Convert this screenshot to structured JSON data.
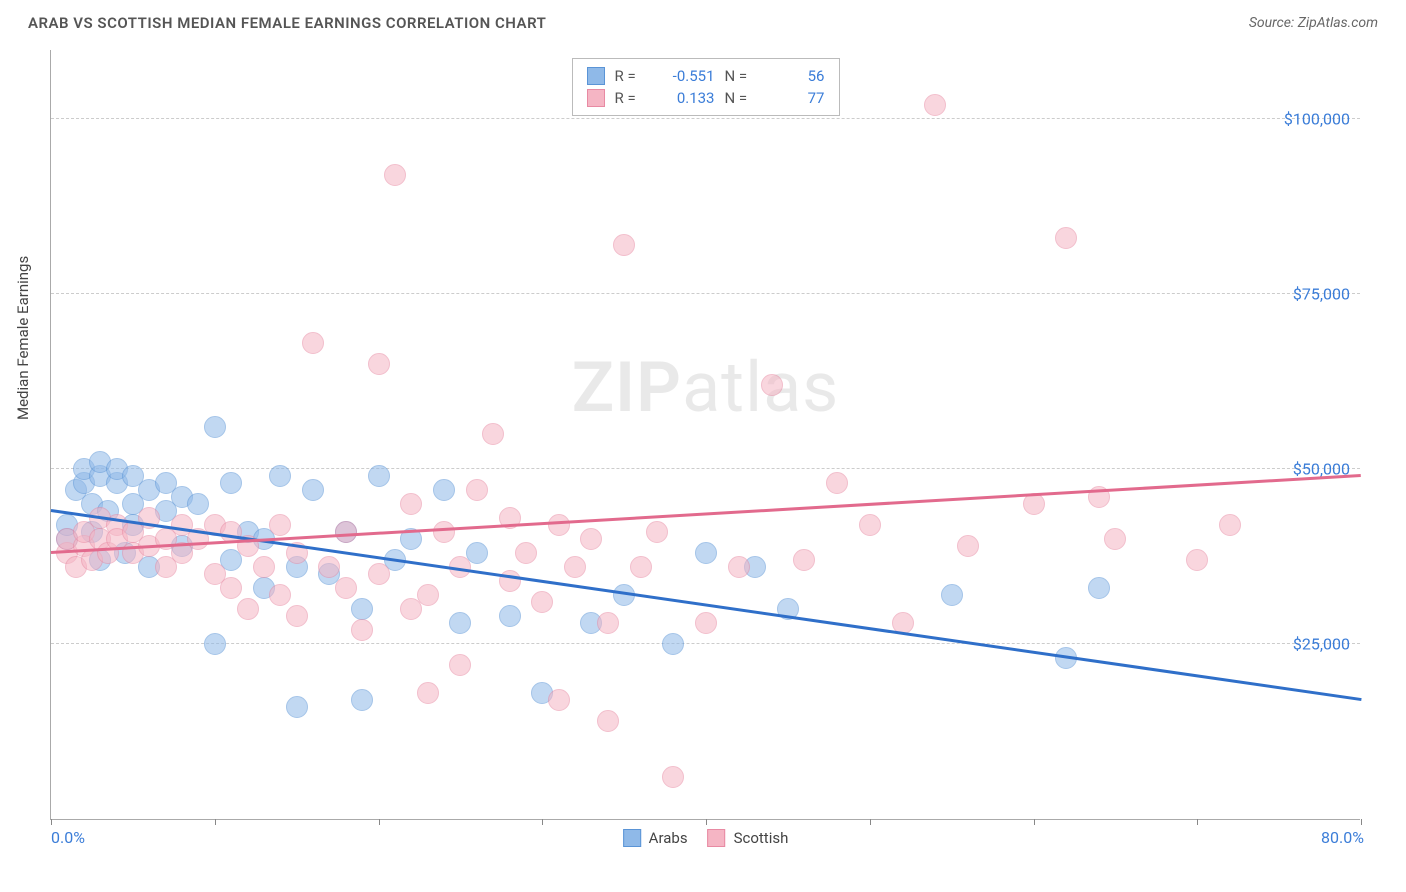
{
  "header": {
    "title": "ARAB VS SCOTTISH MEDIAN FEMALE EARNINGS CORRELATION CHART",
    "source_prefix": "Source: ",
    "source": "ZipAtlas.com"
  },
  "watermark": {
    "zip": "ZIP",
    "atlas": "atlas"
  },
  "chart": {
    "type": "scatter",
    "xlim": [
      0,
      80
    ],
    "ylim": [
      0,
      110000
    ],
    "x_unit": "%",
    "y_unit": "$",
    "xticks": [
      0,
      10,
      20,
      30,
      40,
      50,
      60,
      70,
      80
    ],
    "yticks": [
      25000,
      50000,
      75000,
      100000
    ],
    "xtick_labels": {
      "0": "0.0%",
      "80": "80.0%"
    },
    "ytick_labels": {
      "25000": "$25,000",
      "50000": "$50,000",
      "75000": "$75,000",
      "100000": "$100,000"
    },
    "ylabel": "Median Female Earnings",
    "grid_color": "#cccccc",
    "axis_color": "#aaaaaa",
    "tick_label_color": "#3b7dd8",
    "background_color": "#ffffff",
    "point_radius": 11,
    "point_opacity": 0.55,
    "series": [
      {
        "name": "Arabs",
        "fill": "#8fb9e8",
        "stroke": "#5a94d6",
        "line_color": "#2f6fc9",
        "R": -0.551,
        "N": 56,
        "trend": {
          "x1": 0,
          "y1": 44000,
          "x2": 80,
          "y2": 17000
        },
        "points": [
          [
            1,
            40000
          ],
          [
            1,
            42000
          ],
          [
            1.5,
            47000
          ],
          [
            2,
            48000
          ],
          [
            2,
            50000
          ],
          [
            2.5,
            41000
          ],
          [
            2.5,
            45000
          ],
          [
            3,
            49000
          ],
          [
            3,
            51000
          ],
          [
            3,
            37000
          ],
          [
            3.5,
            44000
          ],
          [
            4,
            48000
          ],
          [
            4,
            50000
          ],
          [
            4.5,
            38000
          ],
          [
            5,
            45000
          ],
          [
            5,
            42000
          ],
          [
            5,
            49000
          ],
          [
            6,
            47000
          ],
          [
            6,
            36000
          ],
          [
            7,
            48000
          ],
          [
            7,
            44000
          ],
          [
            8,
            46000
          ],
          [
            8,
            39000
          ],
          [
            9,
            45000
          ],
          [
            10,
            25000
          ],
          [
            10,
            56000
          ],
          [
            11,
            48000
          ],
          [
            11,
            37000
          ],
          [
            12,
            41000
          ],
          [
            13,
            40000
          ],
          [
            13,
            33000
          ],
          [
            14,
            49000
          ],
          [
            15,
            36000
          ],
          [
            15,
            16000
          ],
          [
            16,
            47000
          ],
          [
            17,
            35000
          ],
          [
            18,
            41000
          ],
          [
            19,
            30000
          ],
          [
            19,
            17000
          ],
          [
            20,
            49000
          ],
          [
            21,
            37000
          ],
          [
            22,
            40000
          ],
          [
            24,
            47000
          ],
          [
            25,
            28000
          ],
          [
            26,
            38000
          ],
          [
            28,
            29000
          ],
          [
            30,
            18000
          ],
          [
            33,
            28000
          ],
          [
            35,
            32000
          ],
          [
            38,
            25000
          ],
          [
            40,
            38000
          ],
          [
            43,
            36000
          ],
          [
            45,
            30000
          ],
          [
            55,
            32000
          ],
          [
            62,
            23000
          ],
          [
            64,
            33000
          ]
        ]
      },
      {
        "name": "Scottish",
        "fill": "#f5b5c4",
        "stroke": "#e88aa3",
        "line_color": "#e26a8d",
        "R": 0.133,
        "N": 77,
        "trend": {
          "x1": 0,
          "y1": 38000,
          "x2": 80,
          "y2": 49000
        },
        "points": [
          [
            1,
            38000
          ],
          [
            1,
            40000
          ],
          [
            1.5,
            36000
          ],
          [
            2,
            39000
          ],
          [
            2,
            41000
          ],
          [
            2.5,
            37000
          ],
          [
            3,
            40000
          ],
          [
            3,
            43000
          ],
          [
            3.5,
            38000
          ],
          [
            4,
            42000
          ],
          [
            4,
            40000
          ],
          [
            5,
            38000
          ],
          [
            5,
            41000
          ],
          [
            6,
            39000
          ],
          [
            6,
            43000
          ],
          [
            7,
            40000
          ],
          [
            7,
            36000
          ],
          [
            8,
            42000
          ],
          [
            8,
            38000
          ],
          [
            9,
            40000
          ],
          [
            10,
            35000
          ],
          [
            10,
            42000
          ],
          [
            11,
            33000
          ],
          [
            11,
            41000
          ],
          [
            12,
            39000
          ],
          [
            12,
            30000
          ],
          [
            13,
            36000
          ],
          [
            14,
            42000
          ],
          [
            14,
            32000
          ],
          [
            15,
            38000
          ],
          [
            15,
            29000
          ],
          [
            16,
            68000
          ],
          [
            17,
            36000
          ],
          [
            18,
            33000
          ],
          [
            18,
            41000
          ],
          [
            19,
            27000
          ],
          [
            20,
            65000
          ],
          [
            20,
            35000
          ],
          [
            21,
            92000
          ],
          [
            22,
            30000
          ],
          [
            22,
            45000
          ],
          [
            23,
            32000
          ],
          [
            23,
            18000
          ],
          [
            24,
            41000
          ],
          [
            25,
            36000
          ],
          [
            25,
            22000
          ],
          [
            26,
            47000
          ],
          [
            27,
            55000
          ],
          [
            28,
            34000
          ],
          [
            28,
            43000
          ],
          [
            29,
            38000
          ],
          [
            30,
            31000
          ],
          [
            31,
            42000
          ],
          [
            31,
            17000
          ],
          [
            32,
            36000
          ],
          [
            33,
            40000
          ],
          [
            34,
            28000
          ],
          [
            34,
            14000
          ],
          [
            35,
            82000
          ],
          [
            36,
            36000
          ],
          [
            37,
            41000
          ],
          [
            38,
            6000
          ],
          [
            40,
            28000
          ],
          [
            42,
            36000
          ],
          [
            44,
            62000
          ],
          [
            46,
            37000
          ],
          [
            48,
            48000
          ],
          [
            50,
            42000
          ],
          [
            52,
            28000
          ],
          [
            54,
            102000
          ],
          [
            56,
            39000
          ],
          [
            60,
            45000
          ],
          [
            62,
            83000
          ],
          [
            64,
            46000
          ],
          [
            65,
            40000
          ],
          [
            70,
            37000
          ],
          [
            72,
            42000
          ]
        ]
      }
    ]
  },
  "legend_bottom": {
    "items": [
      "Arabs",
      "Scottish"
    ]
  }
}
